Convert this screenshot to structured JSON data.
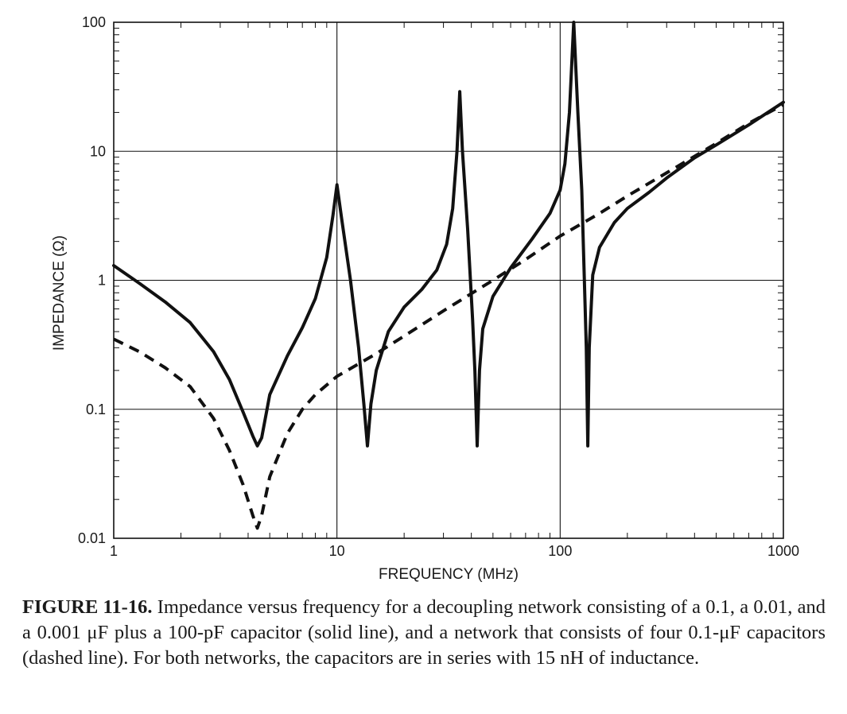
{
  "chart_data": {
    "type": "line",
    "xscale": "log",
    "yscale": "log",
    "xlim": [
      1,
      1000
    ],
    "ylim": [
      0.01,
      100
    ],
    "xlabel": "FREQUENCY (MHz)",
    "ylabel": "IMPEDANCE (Ω)",
    "x_ticks": [
      {
        "value": 1,
        "label": "1"
      },
      {
        "value": 10,
        "label": "10"
      },
      {
        "value": 100,
        "label": "100"
      },
      {
        "value": 1000,
        "label": "1000"
      }
    ],
    "y_ticks": [
      {
        "value": 0.01,
        "label": "0.01"
      },
      {
        "value": 0.1,
        "label": "0.1"
      },
      {
        "value": 1,
        "label": "1"
      },
      {
        "value": 10,
        "label": "10"
      },
      {
        "value": 100,
        "label": "100"
      }
    ],
    "grid": "major",
    "series": [
      {
        "style": "solid",
        "color": "#111111",
        "points": [
          [
            1,
            1.3
          ],
          [
            1.3,
            0.95
          ],
          [
            1.7,
            0.68
          ],
          [
            2.2,
            0.47
          ],
          [
            2.8,
            0.28
          ],
          [
            3.3,
            0.17
          ],
          [
            3.8,
            0.095
          ],
          [
            4.2,
            0.062
          ],
          [
            4.4,
            0.052
          ],
          [
            4.6,
            0.06
          ],
          [
            5,
            0.13
          ],
          [
            6,
            0.26
          ],
          [
            7,
            0.43
          ],
          [
            8,
            0.72
          ],
          [
            9,
            1.5
          ],
          [
            9.6,
            3.2
          ],
          [
            10,
            5.5
          ],
          [
            10.5,
            3.0
          ],
          [
            11.5,
            1.0
          ],
          [
            12.5,
            0.3
          ],
          [
            13.2,
            0.11
          ],
          [
            13.7,
            0.052
          ],
          [
            14.2,
            0.11
          ],
          [
            15,
            0.2
          ],
          [
            17,
            0.4
          ],
          [
            20,
            0.62
          ],
          [
            24,
            0.85
          ],
          [
            28,
            1.2
          ],
          [
            31,
            1.9
          ],
          [
            33,
            3.6
          ],
          [
            34.5,
            10
          ],
          [
            35.5,
            29
          ],
          [
            36.5,
            10
          ],
          [
            38.5,
            2.5
          ],
          [
            40.5,
            0.5
          ],
          [
            41.5,
            0.2
          ],
          [
            42.5,
            0.052
          ],
          [
            43.5,
            0.2
          ],
          [
            45,
            0.42
          ],
          [
            50,
            0.75
          ],
          [
            60,
            1.25
          ],
          [
            75,
            2.1
          ],
          [
            90,
            3.3
          ],
          [
            100,
            5
          ],
          [
            105,
            8
          ],
          [
            110,
            20
          ],
          [
            115,
            100
          ],
          [
            120,
            20
          ],
          [
            125,
            5
          ],
          [
            128,
            1.2
          ],
          [
            131,
            0.3
          ],
          [
            133,
            0.052
          ],
          [
            135,
            0.3
          ],
          [
            140,
            1.1
          ],
          [
            150,
            1.8
          ],
          [
            175,
            2.8
          ],
          [
            200,
            3.6
          ],
          [
            250,
            4.8
          ],
          [
            300,
            6.2
          ],
          [
            400,
            8.9
          ],
          [
            500,
            11.2
          ],
          [
            700,
            16
          ],
          [
            1000,
            24
          ]
        ]
      },
      {
        "style": "dashed",
        "color": "#111111",
        "points": [
          [
            1,
            0.35
          ],
          [
            1.3,
            0.28
          ],
          [
            1.7,
            0.21
          ],
          [
            2.2,
            0.15
          ],
          [
            2.8,
            0.085
          ],
          [
            3.3,
            0.048
          ],
          [
            3.8,
            0.026
          ],
          [
            4.2,
            0.015
          ],
          [
            4.4,
            0.012
          ],
          [
            4.6,
            0.015
          ],
          [
            5,
            0.03
          ],
          [
            6,
            0.065
          ],
          [
            7,
            0.1
          ],
          [
            8,
            0.13
          ],
          [
            10,
            0.18
          ],
          [
            15,
            0.27
          ],
          [
            20,
            0.37
          ],
          [
            30,
            0.58
          ],
          [
            50,
            1.0
          ],
          [
            70,
            1.45
          ],
          [
            100,
            2.2
          ],
          [
            150,
            3.3
          ],
          [
            200,
            4.5
          ],
          [
            300,
            6.8
          ],
          [
            500,
            11.5
          ],
          [
            700,
            16.5
          ],
          [
            1000,
            23
          ]
        ]
      }
    ]
  },
  "caption": {
    "label": "FIGURE 11-16.",
    "text": "Impedance versus frequency for a decoupling network consisting of a 0.1, a 0.01, and a 0.001 μF plus a 100-pF capacitor (solid line), and a network that consists of four 0.1-μF capacitors (dashed line). For both networks, the capacitors are in series with 15 nH of inductance."
  }
}
